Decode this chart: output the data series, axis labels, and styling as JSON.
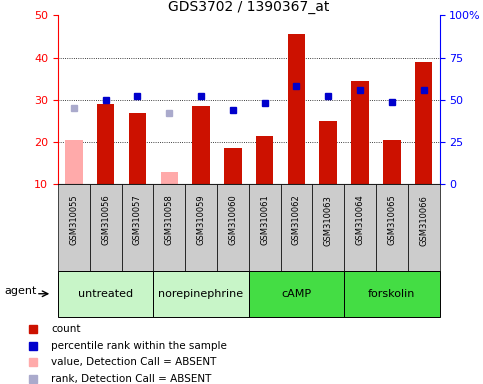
{
  "title": "GDS3702 / 1390367_at",
  "samples": [
    "GSM310055",
    "GSM310056",
    "GSM310057",
    "GSM310058",
    "GSM310059",
    "GSM310060",
    "GSM310061",
    "GSM310062",
    "GSM310063",
    "GSM310064",
    "GSM310065",
    "GSM310066"
  ],
  "bar_values": [
    20.5,
    29.0,
    27.0,
    13.0,
    28.5,
    18.5,
    21.5,
    45.5,
    25.0,
    34.5,
    20.5,
    39.0
  ],
  "bar_absent": [
    true,
    false,
    false,
    true,
    false,
    false,
    false,
    false,
    false,
    false,
    false,
    false
  ],
  "rank_values": [
    45,
    50,
    52,
    42,
    52,
    44,
    48,
    58,
    52,
    56,
    49,
    56
  ],
  "rank_absent": [
    true,
    false,
    false,
    true,
    false,
    false,
    false,
    false,
    false,
    false,
    false,
    false
  ],
  "ylim_left": [
    10,
    50
  ],
  "ylim_right": [
    0,
    100
  ],
  "yticks_left": [
    10,
    20,
    30,
    40,
    50
  ],
  "yticks_right": [
    0,
    25,
    50,
    75,
    100
  ],
  "ytick_labels_right": [
    "0",
    "25",
    "50",
    "75",
    "100%"
  ],
  "groups": [
    {
      "label": "untreated",
      "indices": [
        0,
        1,
        2
      ],
      "color": "#c8f5c8"
    },
    {
      "label": "norepinephrine",
      "indices": [
        3,
        4,
        5
      ],
      "color": "#c8f5c8"
    },
    {
      "label": "cAMP",
      "indices": [
        6,
        7,
        8
      ],
      "color": "#44dd44"
    },
    {
      "label": "forskolin",
      "indices": [
        9,
        10,
        11
      ],
      "color": "#44dd44"
    }
  ],
  "bar_color_present": "#cc1100",
  "bar_color_absent": "#ffaaaa",
  "rank_color_present": "#0000cc",
  "rank_color_absent": "#aaaacc",
  "sample_bg_color": "#cccccc",
  "plot_bg_color": "#ffffff",
  "agent_label": "agent",
  "legend": [
    {
      "color": "#cc1100",
      "label": "count"
    },
    {
      "color": "#0000cc",
      "label": "percentile rank within the sample"
    },
    {
      "color": "#ffaaaa",
      "label": "value, Detection Call = ABSENT"
    },
    {
      "color": "#aaaacc",
      "label": "rank, Detection Call = ABSENT"
    }
  ]
}
